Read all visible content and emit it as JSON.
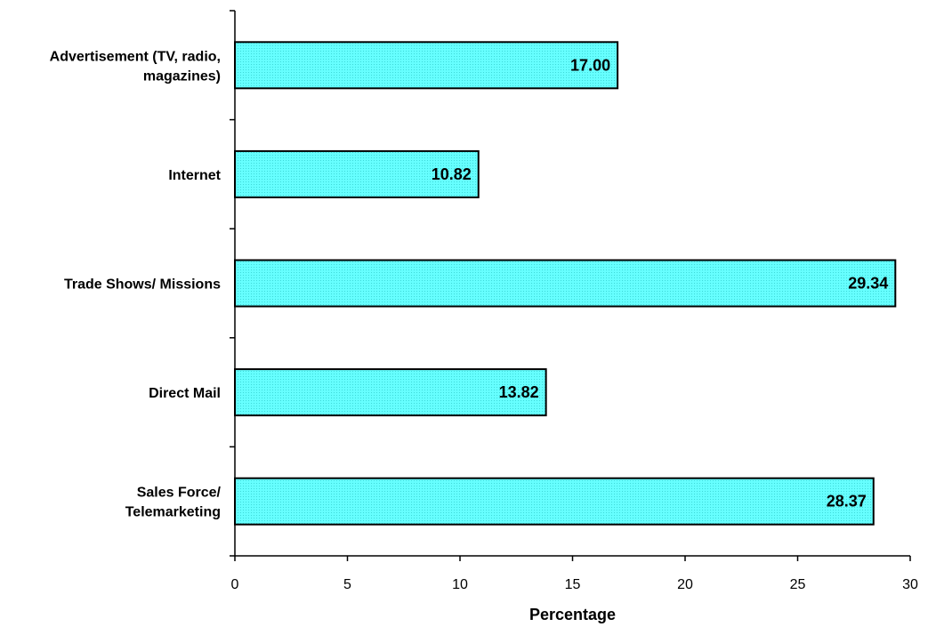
{
  "chart_data": {
    "type": "bar",
    "orientation": "horizontal",
    "categories": [
      [
        "Advertisement (TV, radio,",
        "magazines)"
      ],
      [
        "Internet"
      ],
      [
        "Trade Shows/ Missions"
      ],
      [
        "Direct Mail"
      ],
      [
        "Sales Force/",
        "Telemarketing"
      ]
    ],
    "values": [
      17.0,
      10.82,
      29.34,
      13.82,
      28.37
    ],
    "value_labels": [
      "17.00",
      "10.82",
      "29.34",
      "13.82",
      "28.37"
    ],
    "xlabel": "Percentage",
    "xlim": [
      0,
      30
    ],
    "xticks": [
      0,
      5,
      10,
      15,
      20,
      25,
      30
    ],
    "bar_color": "#66ffff",
    "bar_border_color": "#000000",
    "grid": false
  }
}
